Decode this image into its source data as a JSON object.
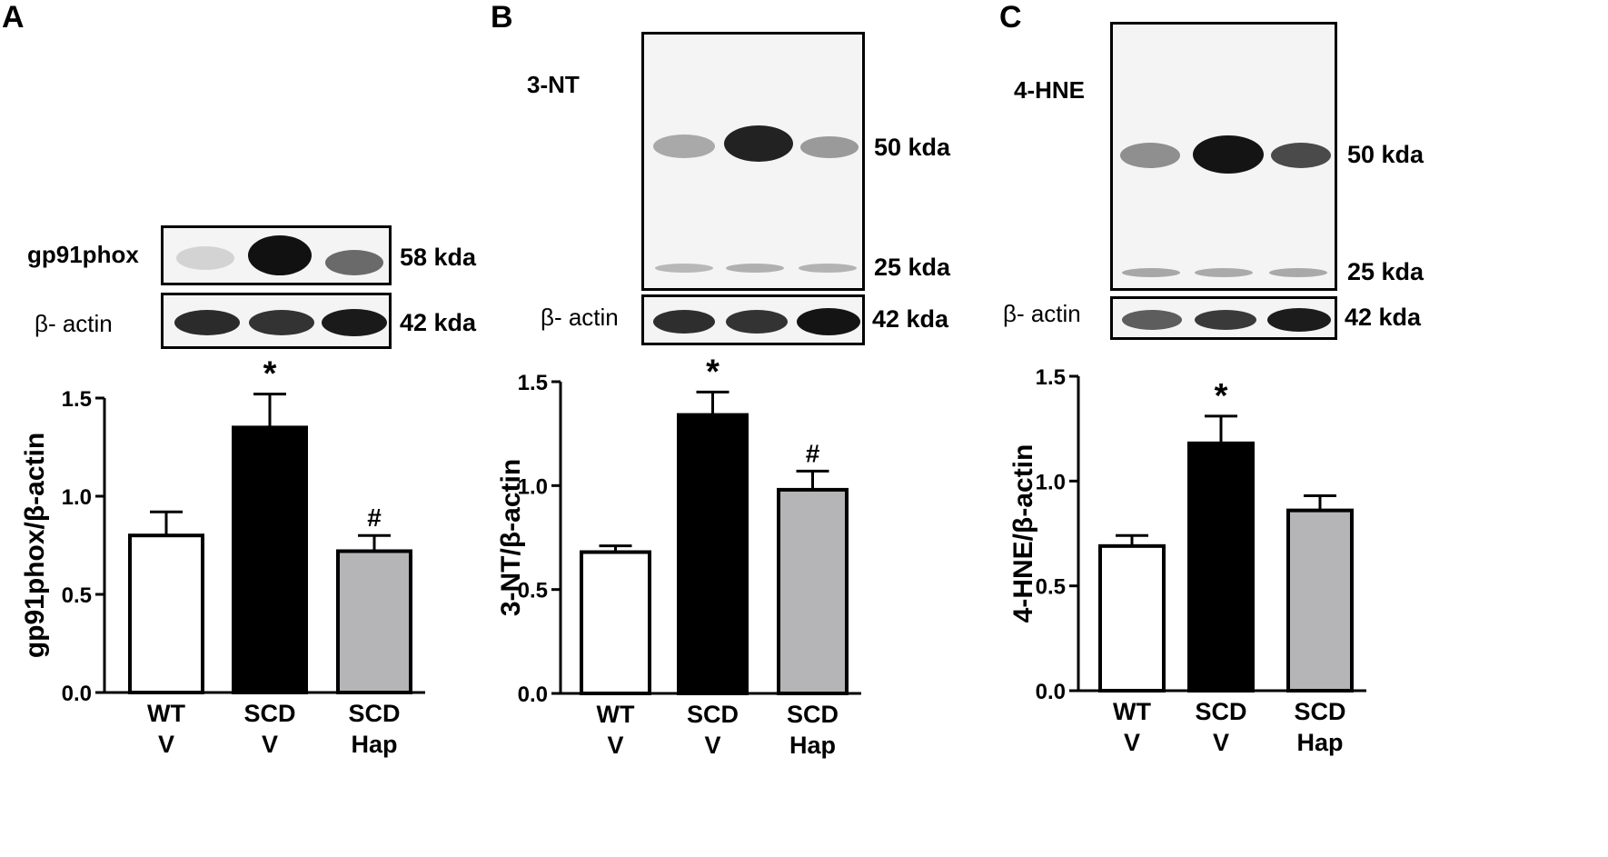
{
  "panels": [
    {
      "letter": "A",
      "blot_labels": [
        "gp91phox",
        "β- actin"
      ],
      "kda_labels": [
        "58 kda",
        "42 kda"
      ]
    },
    {
      "letter": "B",
      "blot_labels": [
        "3-NT",
        "β- actin"
      ],
      "kda_labels": [
        "50 kda",
        "25 kda",
        "42 kda"
      ]
    },
    {
      "letter": "C",
      "blot_labels": [
        "4-HNE",
        "β- actin"
      ],
      "kda_labels": [
        "50 kda",
        "25 kda",
        "42 kda"
      ]
    }
  ],
  "colors": {
    "wt": "#ffffff",
    "scd_v": "#000000",
    "scd_hap": "#b5b5b8",
    "axis": "#000000"
  },
  "chart_data": [
    {
      "type": "bar",
      "categories": [
        [
          "WT",
          "V"
        ],
        [
          "SCD",
          "V"
        ],
        [
          "SCD",
          "Hap"
        ]
      ],
      "values": [
        0.8,
        1.35,
        0.72
      ],
      "errors": [
        0.12,
        0.17,
        0.08
      ],
      "annotations": [
        "",
        "*",
        "#"
      ],
      "ylabel": "gp91phox/β-actin",
      "ylim": [
        0,
        1.5
      ],
      "yticks": [
        "0.0",
        "0.5",
        "1.0",
        "1.5"
      ]
    },
    {
      "type": "bar",
      "categories": [
        [
          "WT",
          "V"
        ],
        [
          "SCD",
          "V"
        ],
        [
          "SCD",
          "Hap"
        ]
      ],
      "values": [
        0.68,
        1.34,
        0.98
      ],
      "errors": [
        0.03,
        0.11,
        0.09
      ],
      "annotations": [
        "",
        "*",
        "#"
      ],
      "ylabel": "3-NT/β-actin",
      "ylim": [
        0,
        1.5
      ],
      "yticks": [
        "0.0",
        "0.5",
        "1.0",
        "1.5"
      ]
    },
    {
      "type": "bar",
      "categories": [
        [
          "WT",
          "V"
        ],
        [
          "SCD",
          "V"
        ],
        [
          "SCD",
          "Hap"
        ]
      ],
      "values": [
        0.69,
        1.18,
        0.86
      ],
      "errors": [
        0.05,
        0.13,
        0.07
      ],
      "annotations": [
        "",
        "*",
        ""
      ],
      "ylabel": "4-HNE/β-actin",
      "ylim": [
        0,
        1.5
      ],
      "yticks": [
        "0.0",
        "0.5",
        "1.0",
        "1.5"
      ]
    }
  ]
}
